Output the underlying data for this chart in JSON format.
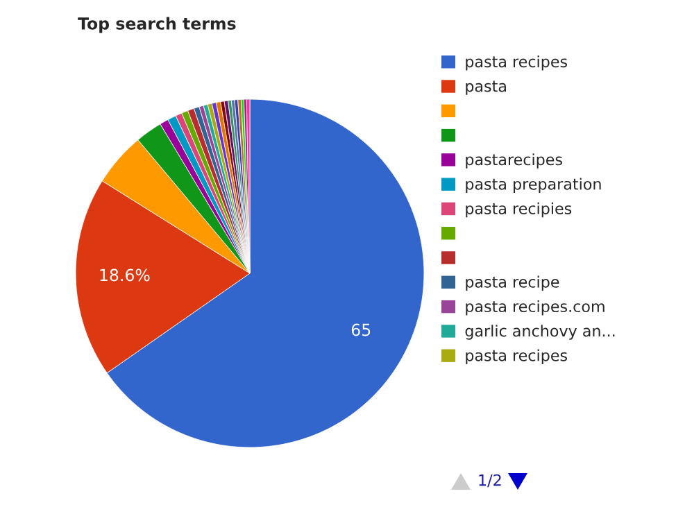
{
  "chart_data": {
    "type": "pie",
    "title": "Top search terms",
    "categories": [
      "pasta recipes",
      "pasta",
      null,
      null,
      "pastarecipes",
      "pasta preparation",
      "pasta recipies",
      null,
      null,
      "pasta recipe",
      "pasta recipes.com",
      "garlic anchovy an...",
      "pasta recipes",
      null,
      null,
      null,
      null,
      null,
      null,
      null,
      null,
      null,
      null,
      null
    ],
    "values": [
      65.3,
      18.6,
      5.0,
      2.5,
      0.8,
      0.8,
      0.6,
      0.6,
      0.6,
      0.5,
      0.4,
      0.4,
      0.4,
      0.4,
      0.4,
      0.35,
      0.35,
      0.3,
      0.3,
      0.3,
      0.3,
      0.25,
      0.25,
      0.3
    ],
    "colors": [
      "#3366cc",
      "#dc3912",
      "#ff9900",
      "#109618",
      "#990099",
      "#0099c6",
      "#dd4477",
      "#66aa00",
      "#b82e2e",
      "#316395",
      "#994499",
      "#22aa99",
      "#aaaa11",
      "#6633cc",
      "#e67300",
      "#8b0707",
      "#651067",
      "#329262",
      "#5574a6",
      "#3b3eac",
      "#b77322",
      "#16d620",
      "#b91383",
      "#f4359e"
    ],
    "value_labels": [
      "65",
      "18.6%",
      null,
      null,
      null,
      null,
      null,
      null,
      null,
      null,
      null,
      null,
      null,
      null,
      null,
      null,
      null,
      null,
      null,
      null,
      null,
      null,
      null,
      null
    ],
    "legend": "right",
    "annotations": [
      "1/2"
    ]
  }
}
